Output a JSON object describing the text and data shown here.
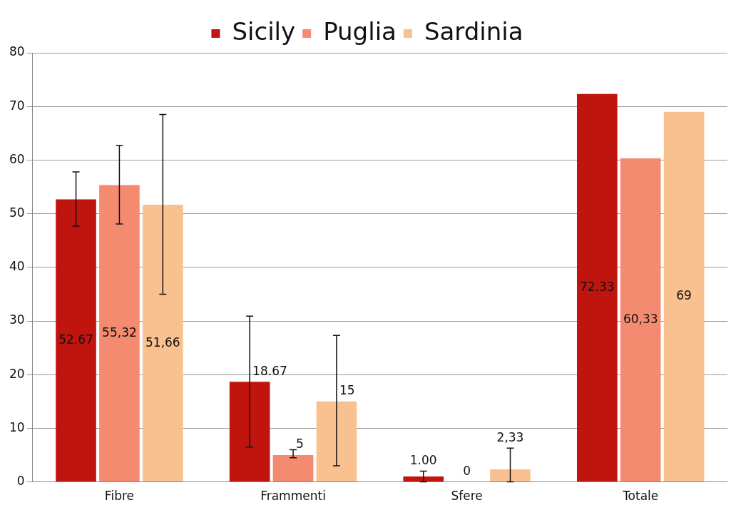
{
  "chart_data": {
    "type": "bar",
    "categories": [
      "Fibre",
      "Frammenti",
      "Sfere",
      "Totale"
    ],
    "series": [
      {
        "name": "Sicily",
        "color": "#c0150f",
        "values": [
          52.67,
          18.67,
          1.0,
          72.33
        ],
        "errors": [
          [
            47.7,
            57.8
          ],
          [
            6.5,
            30.9
          ],
          [
            0,
            2.0
          ],
          null
        ],
        "value_labels": [
          "52.67",
          "18.67",
          "1.00",
          "72.33"
        ]
      },
      {
        "name": "Puglia",
        "color": "#f48a70",
        "values": [
          55.32,
          5,
          0,
          60.33
        ],
        "errors": [
          [
            48.1,
            62.7
          ],
          [
            4.5,
            6.0
          ],
          null,
          null
        ],
        "value_labels": [
          "55,32",
          "5",
          "0",
          "60,33"
        ]
      },
      {
        "name": "Sardinia",
        "color": "#f9c18f",
        "values": [
          51.66,
          15,
          2.33,
          69
        ],
        "errors": [
          [
            35.0,
            68.5
          ],
          [
            3.0,
            27.3
          ],
          [
            0,
            6.3
          ],
          null
        ],
        "value_labels": [
          "51,66",
          "15",
          "2,33",
          "69"
        ]
      }
    ],
    "ylim": [
      0,
      80
    ],
    "yticks": [
      0,
      10,
      20,
      30,
      40,
      50,
      60,
      70,
      80
    ],
    "grid": "y",
    "legend": "top"
  }
}
